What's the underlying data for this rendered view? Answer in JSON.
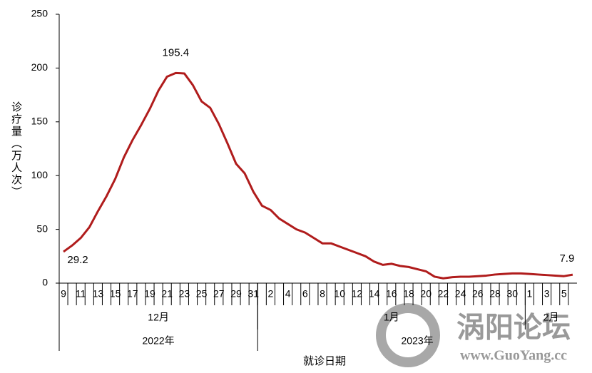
{
  "chart_data": {
    "type": "line",
    "y_label": "诊疗量（万人次）",
    "x_label": "就诊日期",
    "categories": [
      9,
      null,
      11,
      null,
      13,
      null,
      15,
      null,
      17,
      null,
      19,
      null,
      21,
      null,
      23,
      null,
      25,
      null,
      27,
      null,
      29,
      null,
      31,
      null,
      2,
      null,
      4,
      null,
      6,
      null,
      8,
      null,
      10,
      null,
      12,
      null,
      14,
      null,
      16,
      null,
      18,
      null,
      20,
      null,
      22,
      null,
      24,
      null,
      26,
      null,
      28,
      null,
      30,
      null,
      1,
      null,
      3,
      null,
      5,
      null
    ],
    "years": [
      {
        "label": "2022年",
        "months": [
          {
            "label": "12月"
          }
        ]
      },
      {
        "label": "2023年",
        "months": [
          {
            "label": "1月"
          },
          {
            "label": "2月"
          }
        ]
      }
    ],
    "series": [
      {
        "color": "#b01c1c",
        "values": [
          29.2,
          35,
          42,
          52,
          67,
          81,
          97,
          117,
          133,
          147,
          162,
          179,
          192,
          195.4,
          195,
          184,
          169,
          163,
          148,
          130,
          111,
          102,
          85,
          72,
          68,
          60,
          55,
          50,
          47,
          42,
          37,
          37,
          34,
          31,
          28,
          25,
          20,
          17,
          18,
          16,
          15,
          13,
          11,
          6,
          4.5,
          5.5,
          6,
          6,
          6.5,
          7,
          8,
          8.5,
          9,
          9,
          8.5,
          8,
          7.5,
          7,
          6.5,
          7.9
        ]
      }
    ],
    "ylim": [
      0,
      250
    ],
    "yticks": [
      0,
      50,
      100,
      150,
      200,
      250
    ]
  },
  "watermark": {
    "name": "涡阳论坛",
    "url": "www.GuoYang.cc"
  }
}
